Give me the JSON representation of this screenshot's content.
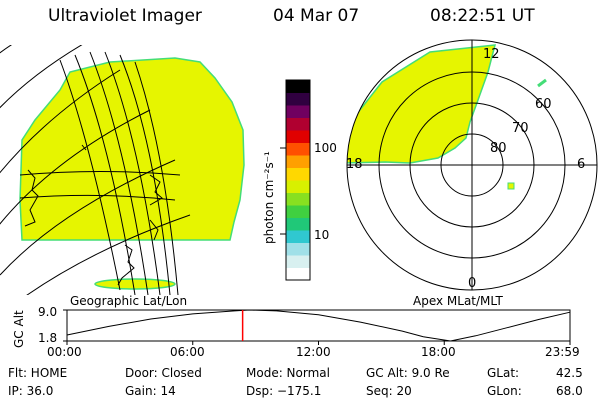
{
  "header": {
    "title": "Ultraviolet Imager",
    "date": "04 Mar 07",
    "time": "08:22:51 UT"
  },
  "geo_panel": {
    "caption": "Geographic Lat/Lon"
  },
  "polar_panel": {
    "caption": "Apex MLat/MLT",
    "mlt_labels": {
      "top": "12",
      "left": "18",
      "right": "6",
      "bottom": "0"
    },
    "mlat_labels": [
      "60",
      "70",
      "80"
    ]
  },
  "colorbar": {
    "unit_label": "photon cm⁻²s⁻¹",
    "scale": "log",
    "tick_labels": [
      "100",
      "10"
    ],
    "colors": [
      "#ffffff",
      "#d8f0f0",
      "#a0e0e8",
      "#30c8d0",
      "#20c878",
      "#40d040",
      "#88e020",
      "#d8f000",
      "#ffd800",
      "#ffa000",
      "#ff5000",
      "#e00000",
      "#b00030",
      "#700060",
      "#300040",
      "#000000"
    ]
  },
  "chart_data": {
    "type": "line",
    "title": "",
    "ylabel": "GC Alt",
    "ylim": [
      1.8,
      9.0
    ],
    "y_ticks": [
      "9.0",
      "1.8"
    ],
    "x_ticks": [
      "00:00",
      "06:00",
      "12:00",
      "18:00",
      "23:59"
    ],
    "series": [
      {
        "x": [
          0,
          2,
          4,
          6,
          8,
          8.7,
          10,
          12,
          14,
          16,
          17,
          18.3,
          19.5,
          21,
          22.5,
          24
        ],
        "y": [
          3.2,
          5.2,
          6.9,
          8.1,
          8.8,
          9.0,
          8.8,
          7.9,
          6.2,
          4.1,
          2.8,
          1.8,
          3.0,
          4.9,
          6.8,
          8.5
        ]
      }
    ],
    "marker_time": 8.38
  },
  "footer": {
    "flt": "Flt: HOME",
    "ip": "IP: 36.0",
    "door": "Door: Closed",
    "gain": "Gain: 14",
    "mode": "Mode: Normal",
    "dsp": "Dsp: −175.1",
    "gcalt": "GC Alt: 9.0 Re",
    "seq": "Seq: 20",
    "glat_label": "GLat:",
    "glat": "42.5",
    "glon_label": "GLon:",
    "glon": "68.0"
  },
  "colors": {
    "aurora": "#e6f500",
    "edge": "#44dd77",
    "marker": "#ff0000"
  }
}
